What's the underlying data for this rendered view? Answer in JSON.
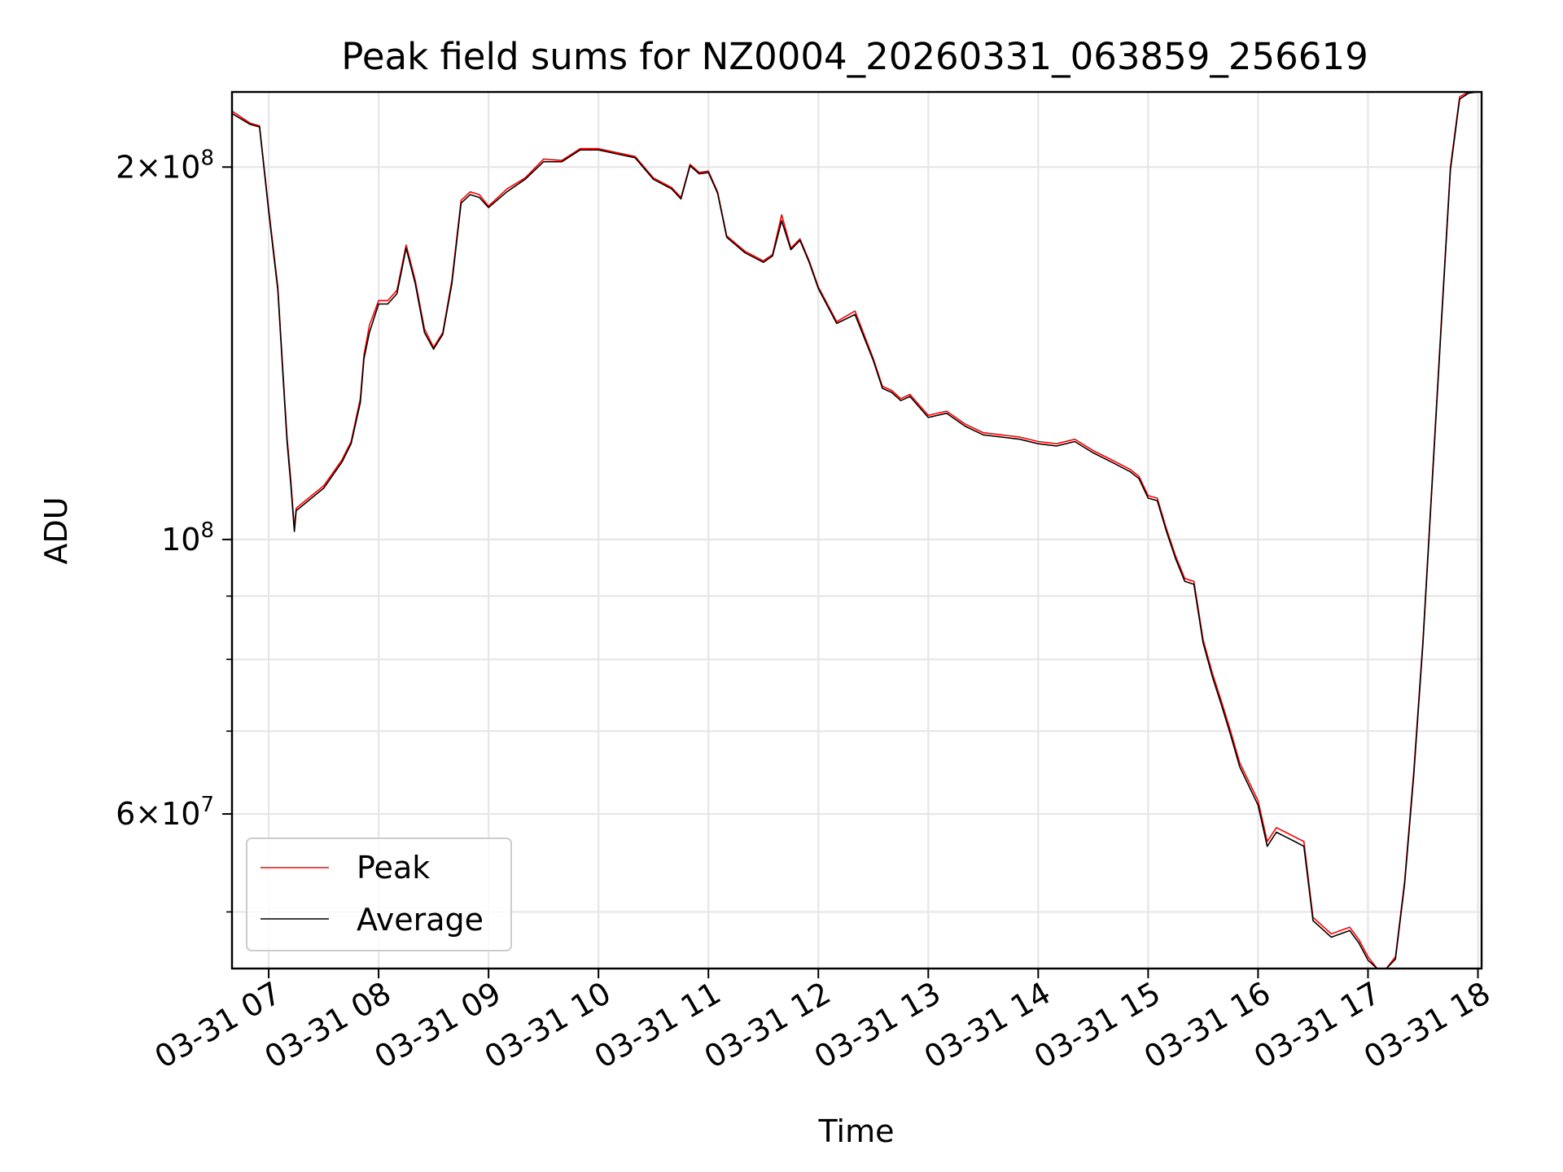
{
  "chart_data": {
    "type": "line",
    "title": "Peak field sums for NZ0004_20260331_063859_256619",
    "xlabel": "Time",
    "ylabel": "ADU",
    "x_tick_labels": [
      "03-31 07",
      "03-31 08",
      "03-31 09",
      "03-31 10",
      "03-31 11",
      "03-31 12",
      "03-31 13",
      "03-31 14",
      "03-31 15",
      "03-31 16",
      "03-31 17",
      "03-31 18"
    ],
    "y_scale": "log",
    "y_major_ticks": [
      {
        "value": 60000000,
        "mantissa": "6",
        "exponent": "7"
      },
      {
        "value": 100000000,
        "mantissa": "",
        "exponent": "8"
      },
      {
        "value": 200000000,
        "mantissa": "2",
        "exponent": "8"
      }
    ],
    "y_minor_ticks": [
      50000000,
      70000000,
      80000000,
      90000000
    ],
    "xlim": [
      "2026-03-31 06:39:59",
      "2026-03-31 18:02:00"
    ],
    "ylim": [
      45000000,
      230000000
    ],
    "grid": true,
    "legend_position": "lower-left",
    "colors": {
      "Peak": "#ff0000",
      "Average": "#000000"
    },
    "series": [
      {
        "name": "Peak",
        "x": [
          "2026-03-31 06:40",
          "2026-03-31 06:50",
          "2026-03-31 06:55",
          "2026-03-31 07:00",
          "2026-03-31 07:05",
          "2026-03-31 07:08",
          "2026-03-31 07:10",
          "2026-03-31 07:12",
          "2026-03-31 07:14",
          "2026-03-31 07:15",
          "2026-03-31 07:20",
          "2026-03-31 07:30",
          "2026-03-31 07:40",
          "2026-03-31 07:45",
          "2026-03-31 07:50",
          "2026-03-31 07:52",
          "2026-03-31 07:55",
          "2026-03-31 08:00",
          "2026-03-31 08:05",
          "2026-03-31 08:10",
          "2026-03-31 08:15",
          "2026-03-31 08:20",
          "2026-03-31 08:25",
          "2026-03-31 08:30",
          "2026-03-31 08:35",
          "2026-03-31 08:40",
          "2026-03-31 08:45",
          "2026-03-31 08:50",
          "2026-03-31 08:55",
          "2026-03-31 09:00",
          "2026-03-31 09:10",
          "2026-03-31 09:20",
          "2026-03-31 09:30",
          "2026-03-31 09:40",
          "2026-03-31 09:50",
          "2026-03-31 10:00",
          "2026-03-31 10:20",
          "2026-03-31 10:30",
          "2026-03-31 10:40",
          "2026-03-31 10:45",
          "2026-03-31 10:50",
          "2026-03-31 10:55",
          "2026-03-31 11:00",
          "2026-03-31 11:05",
          "2026-03-31 11:10",
          "2026-03-31 11:20",
          "2026-03-31 11:30",
          "2026-03-31 11:35",
          "2026-03-31 11:40",
          "2026-03-31 11:45",
          "2026-03-31 11:50",
          "2026-03-31 11:55",
          "2026-03-31 12:00",
          "2026-03-31 12:10",
          "2026-03-31 12:20",
          "2026-03-31 12:30",
          "2026-03-31 12:35",
          "2026-03-31 12:40",
          "2026-03-31 12:45",
          "2026-03-31 12:50",
          "2026-03-31 13:00",
          "2026-03-31 13:10",
          "2026-03-31 13:20",
          "2026-03-31 13:30",
          "2026-03-31 13:40",
          "2026-03-31 13:50",
          "2026-03-31 14:00",
          "2026-03-31 14:10",
          "2026-03-31 14:20",
          "2026-03-31 14:30",
          "2026-03-31 14:40",
          "2026-03-31 14:50",
          "2026-03-31 14:55",
          "2026-03-31 15:00",
          "2026-03-31 15:05",
          "2026-03-31 15:10",
          "2026-03-31 15:15",
          "2026-03-31 15:20",
          "2026-03-31 15:25",
          "2026-03-31 15:30",
          "2026-03-31 15:35",
          "2026-03-31 15:40",
          "2026-03-31 15:45",
          "2026-03-31 15:50",
          "2026-03-31 16:00",
          "2026-03-31 16:05",
          "2026-03-31 16:10",
          "2026-03-31 16:15",
          "2026-03-31 16:20",
          "2026-03-31 16:25",
          "2026-03-31 16:30",
          "2026-03-31 16:40",
          "2026-03-31 16:45",
          "2026-03-31 16:50",
          "2026-03-31 16:55",
          "2026-03-31 17:00",
          "2026-03-31 17:05",
          "2026-03-31 17:10",
          "2026-03-31 17:15",
          "2026-03-31 17:20",
          "2026-03-31 17:25",
          "2026-03-31 17:30",
          "2026-03-31 17:40",
          "2026-03-31 17:45",
          "2026-03-31 17:50",
          "2026-03-31 17:55",
          "2026-03-31 18:00"
        ],
        "y": [
          222000000,
          217000000,
          216000000,
          185000000,
          160000000,
          135000000,
          121000000,
          112000000,
          102000000,
          106000000,
          107500000,
          110500000,
          116000000,
          120000000,
          130000000,
          141000000,
          149000000,
          156000000,
          156000000,
          159000000,
          173000000,
          162000000,
          148000000,
          143000000,
          147000000,
          162000000,
          188000000,
          191000000,
          190000000,
          186000000,
          192000000,
          196000000,
          203000000,
          202500000,
          207000000,
          207000000,
          204000000,
          196000000,
          192500000,
          189000000,
          201000000,
          198000000,
          198500000,
          191000000,
          176000000,
          171000000,
          168000000,
          170000000,
          183000000,
          172000000,
          175000000,
          168000000,
          160000000,
          150000000,
          153000000,
          140000000,
          133000000,
          132000000,
          130000000,
          131000000,
          126000000,
          127000000,
          124000000,
          122000000,
          121500000,
          121000000,
          120000000,
          119500000,
          120500000,
          118000000,
          116000000,
          114000000,
          112500000,
          108500000,
          108000000,
          102000000,
          97000000,
          93000000,
          92500000,
          83000000,
          78000000,
          74000000,
          70000000,
          66000000,
          61500000,
          57000000,
          58500000,
          58000000,
          57500000,
          57000000,
          49500000,
          48000000,
          48300000,
          48600000,
          47500000,
          46000000,
          44600000,
          44200000,
          46000000,
          53000000,
          65000000,
          83000000,
          150000000,
          200000000,
          228000000,
          230000000,
          230000000
        ]
      },
      {
        "name": "Average",
        "x": [
          "2026-03-31 06:40",
          "2026-03-31 06:50",
          "2026-03-31 06:55",
          "2026-03-31 07:00",
          "2026-03-31 07:05",
          "2026-03-31 07:08",
          "2026-03-31 07:10",
          "2026-03-31 07:12",
          "2026-03-31 07:14",
          "2026-03-31 07:15",
          "2026-03-31 07:20",
          "2026-03-31 07:30",
          "2026-03-31 07:40",
          "2026-03-31 07:45",
          "2026-03-31 07:50",
          "2026-03-31 07:52",
          "2026-03-31 07:55",
          "2026-03-31 08:00",
          "2026-03-31 08:05",
          "2026-03-31 08:10",
          "2026-03-31 08:15",
          "2026-03-31 08:20",
          "2026-03-31 08:25",
          "2026-03-31 08:30",
          "2026-03-31 08:35",
          "2026-03-31 08:40",
          "2026-03-31 08:45",
          "2026-03-31 08:50",
          "2026-03-31 08:55",
          "2026-03-31 09:00",
          "2026-03-31 09:10",
          "2026-03-31 09:20",
          "2026-03-31 09:30",
          "2026-03-31 09:40",
          "2026-03-31 09:50",
          "2026-03-31 10:00",
          "2026-03-31 10:20",
          "2026-03-31 10:30",
          "2026-03-31 10:40",
          "2026-03-31 10:45",
          "2026-03-31 10:50",
          "2026-03-31 10:55",
          "2026-03-31 11:00",
          "2026-03-31 11:05",
          "2026-03-31 11:10",
          "2026-03-31 11:20",
          "2026-03-31 11:30",
          "2026-03-31 11:35",
          "2026-03-31 11:40",
          "2026-03-31 11:45",
          "2026-03-31 11:50",
          "2026-03-31 11:55",
          "2026-03-31 12:00",
          "2026-03-31 12:10",
          "2026-03-31 12:20",
          "2026-03-31 12:30",
          "2026-03-31 12:35",
          "2026-03-31 12:40",
          "2026-03-31 12:45",
          "2026-03-31 12:50",
          "2026-03-31 13:00",
          "2026-03-31 13:10",
          "2026-03-31 13:20",
          "2026-03-31 13:30",
          "2026-03-31 13:40",
          "2026-03-31 13:50",
          "2026-03-31 14:00",
          "2026-03-31 14:10",
          "2026-03-31 14:20",
          "2026-03-31 14:30",
          "2026-03-31 14:40",
          "2026-03-31 14:50",
          "2026-03-31 14:55",
          "2026-03-31 15:00",
          "2026-03-31 15:05",
          "2026-03-31 15:10",
          "2026-03-31 15:15",
          "2026-03-31 15:20",
          "2026-03-31 15:25",
          "2026-03-31 15:30",
          "2026-03-31 15:35",
          "2026-03-31 15:40",
          "2026-03-31 15:45",
          "2026-03-31 15:50",
          "2026-03-31 16:00",
          "2026-03-31 16:05",
          "2026-03-31 16:10",
          "2026-03-31 16:15",
          "2026-03-31 16:20",
          "2026-03-31 16:25",
          "2026-03-31 16:30",
          "2026-03-31 16:40",
          "2026-03-31 16:45",
          "2026-03-31 16:50",
          "2026-03-31 16:55",
          "2026-03-31 17:00",
          "2026-03-31 17:05",
          "2026-03-31 17:10",
          "2026-03-31 17:15",
          "2026-03-31 17:20",
          "2026-03-31 17:25",
          "2026-03-31 17:30",
          "2026-03-31 17:40",
          "2026-03-31 17:45",
          "2026-03-31 17:50",
          "2026-03-31 17:55",
          "2026-03-31 18:00"
        ],
        "y": [
          221000000,
          216500000,
          215500000,
          184000000,
          159000000,
          134000000,
          120000000,
          111000000,
          101500000,
          105500000,
          107000000,
          110000000,
          115500000,
          119500000,
          129000000,
          140000000,
          147000000,
          155000000,
          155000000,
          158000000,
          172000000,
          161000000,
          147000000,
          142500000,
          146500000,
          161000000,
          187000000,
          190000000,
          189000000,
          185500000,
          191000000,
          195500000,
          202000000,
          202000000,
          206500000,
          206500000,
          203500000,
          195500000,
          192000000,
          188500000,
          200500000,
          197500000,
          198000000,
          190500000,
          175500000,
          170500000,
          167500000,
          169500000,
          181000000,
          171500000,
          174500000,
          167500000,
          159500000,
          149500000,
          152000000,
          139500000,
          132500000,
          131500000,
          129500000,
          130500000,
          125500000,
          126500000,
          123500000,
          121500000,
          121000000,
          120500000,
          119500000,
          119000000,
          120000000,
          117500000,
          115500000,
          113500000,
          112000000,
          108000000,
          107500000,
          101500000,
          96500000,
          92500000,
          92000000,
          82500000,
          77500000,
          73500000,
          69500000,
          65500000,
          61000000,
          56500000,
          58000000,
          57500000,
          57000000,
          56500000,
          49200000,
          47700000,
          48000000,
          48300000,
          47200000,
          45700000,
          44400000,
          44000000,
          45800000,
          52700000,
          64500000,
          82500000,
          149000000,
          199000000,
          227000000,
          229500000,
          230000000
        ]
      }
    ]
  }
}
